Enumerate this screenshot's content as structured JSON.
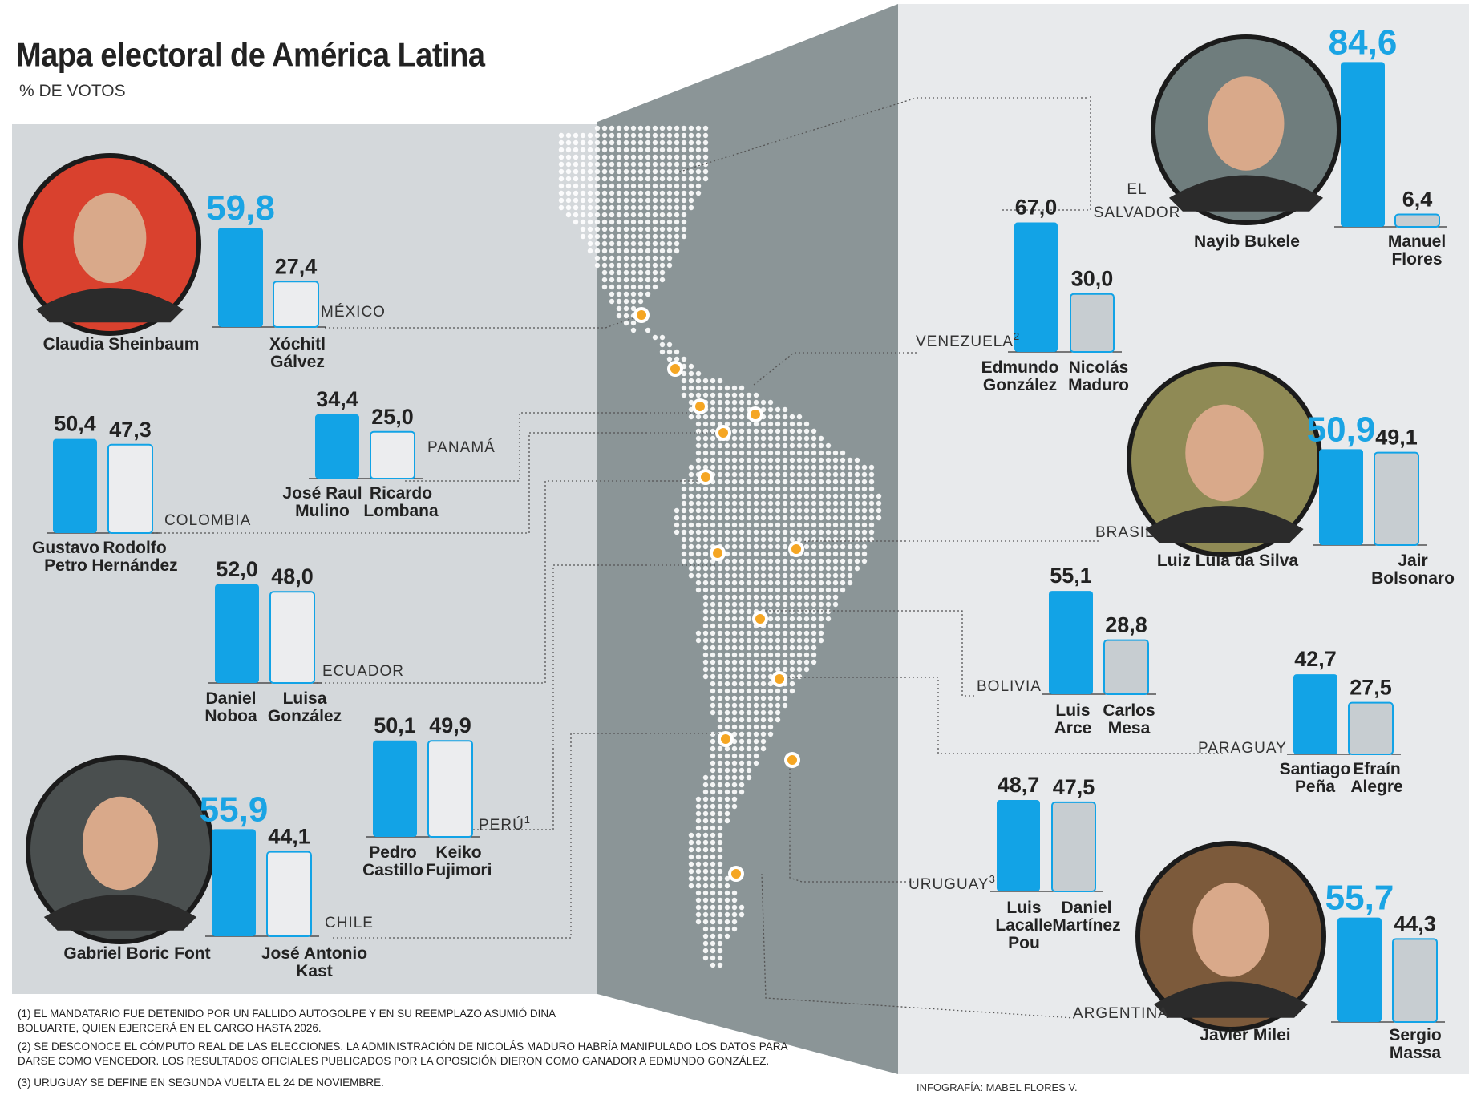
{
  "title": "Mapa electoral de América Latina",
  "subtitle": "% DE VOTOS",
  "colors": {
    "winner": "#12a3e6",
    "winner_value": "#1aa4e4",
    "loser_left": "#ecedef",
    "loser_right": "#c7cdd1",
    "panel_left": "#d4d8db",
    "panel_right": "#e8eaec",
    "map_bg": "#8b9597",
    "marker": "#f5a623"
  },
  "chart_data": [
    {
      "type": "bar",
      "country": "MÉXICO",
      "categories": [
        "Claudia Sheinbaum",
        "Xóchitl Gálvez"
      ],
      "values": [
        59.8,
        27.4
      ],
      "labels": [
        "59,8",
        "27,4"
      ]
    },
    {
      "type": "bar",
      "country": "COLOMBIA",
      "categories": [
        "Gustavo Petro",
        "Rodolfo Hernández"
      ],
      "values": [
        50.4,
        47.3
      ],
      "labels": [
        "50,4",
        "47,3"
      ]
    },
    {
      "type": "bar",
      "country": "PANAMÁ",
      "categories": [
        "José Raul Mulino",
        "Ricardo Lombana"
      ],
      "values": [
        34.4,
        25.0
      ],
      "labels": [
        "34,4",
        "25,0"
      ]
    },
    {
      "type": "bar",
      "country": "ECUADOR",
      "categories": [
        "Daniel Noboa",
        "Luisa González"
      ],
      "values": [
        52.0,
        48.0
      ],
      "labels": [
        "52,0",
        "48,0"
      ]
    },
    {
      "type": "bar",
      "country": "PERÚ",
      "footnote": "1",
      "categories": [
        "Pedro Castillo",
        "Keiko Fujimori"
      ],
      "values": [
        50.1,
        49.9
      ],
      "labels": [
        "50,1",
        "49,9"
      ]
    },
    {
      "type": "bar",
      "country": "CHILE",
      "categories": [
        "Gabriel Boric Font",
        "José Antonio Kast"
      ],
      "values": [
        55.9,
        44.1
      ],
      "labels": [
        "55,9",
        "44,1"
      ]
    },
    {
      "type": "bar",
      "country": "EL SALVADOR",
      "categories": [
        "Nayib Bukele",
        "Manuel Flores"
      ],
      "values": [
        84.6,
        6.4
      ],
      "labels": [
        "84,6",
        "6,4"
      ]
    },
    {
      "type": "bar",
      "country": "VENEZUELA",
      "footnote": "2",
      "categories": [
        "Edmundo González",
        "Nicolás Maduro"
      ],
      "values": [
        67.0,
        30.0
      ],
      "labels": [
        "67,0",
        "30,0"
      ]
    },
    {
      "type": "bar",
      "country": "BRASIL",
      "categories": [
        "Luiz Lula da Silva",
        "Jair Bolsonaro"
      ],
      "values": [
        50.9,
        49.1
      ],
      "labels": [
        "50,9",
        "49,1"
      ]
    },
    {
      "type": "bar",
      "country": "BOLIVIA",
      "categories": [
        "Luis Arce",
        "Carlos Mesa"
      ],
      "values": [
        55.1,
        28.8
      ],
      "labels": [
        "55,1",
        "28,8"
      ]
    },
    {
      "type": "bar",
      "country": "PARAGUAY",
      "categories": [
        "Santiago Peña",
        "Efraín Alegre"
      ],
      "values": [
        42.7,
        27.5
      ],
      "labels": [
        "42,7",
        "27,5"
      ]
    },
    {
      "type": "bar",
      "country": "URUGUAY",
      "footnote": "3",
      "categories": [
        "Luis Lacalle Pou",
        "Daniel Martínez"
      ],
      "values": [
        48.7,
        47.5
      ],
      "labels": [
        "48,7",
        "47,5"
      ]
    },
    {
      "type": "bar",
      "country": "ARGENTINA",
      "categories": [
        "Javier Milei",
        "Sergio Massa"
      ],
      "values": [
        55.7,
        44.3
      ],
      "labels": [
        "55,7",
        "44,3"
      ]
    }
  ],
  "footnotes": [
    "(1) EL MANDATARIO FUE DETENIDO POR UN FALLIDO AUTOGOLPE Y EN SU REEMPLAZO ASUMIÓ DINA BOLUARTE, QUIEN EJERCERÁ EN EL CARGO HASTA 2026.",
    "(2) SE DESCONOCE EL CÓMPUTO REAL DE LAS ELECCIONES. LA ADMINISTRACIÓN DE NICOLÁS MADURO HABRÍA MANIPULADO LOS DATOS PARA DARSE COMO VENCEDOR. LOS RESULTADOS OFICIALES PUBLICADOS POR LA OPOSICIÓN DIERON COMO GANADOR A EDMUNDO GONZÁLEZ.",
    "(3) URUGUAY SE DEFINE EN SEGUNDA VUELTA EL 24 DE NOVIEMBRE."
  ],
  "credit": "INFOGRAFÍA: MABEL FLORES V."
}
